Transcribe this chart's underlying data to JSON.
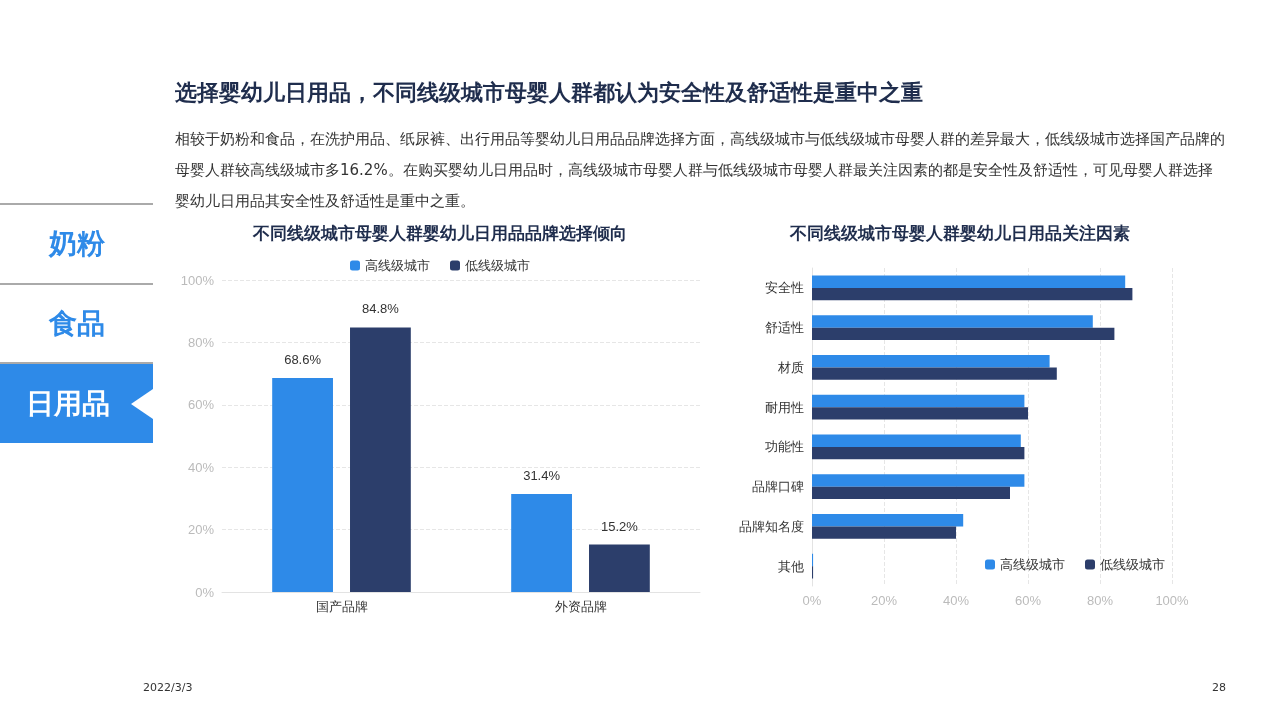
{
  "chart_data": [
    {
      "type": "other",
      "title": "选择婴幼儿日用品，不同线级城市母婴人群都认为安全性及舒适性是重中之重",
      "subtitle": "相较于奶粉和食品，在洗护用品、纸尿裤、出行用品等婴幼儿日用品品牌选择方面，高线级城市与低线级城市母婴人群的差异最大，低线级城市选择国产品牌的母婴人群较高线级城市多16.2%。在购买婴幼儿日用品时，高线级城市母婴人群与低线级城市母婴人群最关注因素的都是安全性及舒适性，可见母婴人群选择婴幼儿日用品其安全性及舒适性是重中之重。",
      "annotations": [
        "奶粉",
        "食品",
        "日用品",
        "2022/3/3",
        "28"
      ]
    },
    {
      "type": "bar",
      "title": "不同线级城市母婴人群婴幼儿日用品品牌选择倾向",
      "categories": [
        "国产品牌",
        "外资品牌"
      ],
      "series": [
        {
          "name": "高线级城市",
          "color": "#2e8ae8",
          "values": [
            68.6,
            31.4
          ],
          "value_labels": [
            "68.6%",
            "31.4%"
          ]
        },
        {
          "name": "低线级城市",
          "color": "#2c3e6b",
          "values": [
            84.8,
            15.2
          ],
          "value_labels": [
            "84.8%",
            "15.2%"
          ]
        }
      ],
      "ylim": [
        0,
        100
      ],
      "yticks": [
        {
          "value": 0,
          "label": "0%"
        },
        {
          "value": 20,
          "label": "20%"
        },
        {
          "value": 40,
          "label": "40%"
        },
        {
          "value": 60,
          "label": "60%"
        },
        {
          "value": 80,
          "label": "80%"
        },
        {
          "value": 100,
          "label": "100%"
        }
      ],
      "grid": "y",
      "legend": "top"
    },
    {
      "type": "bar",
      "orientation": "horizontal",
      "title": "不同线级城市母婴人群婴幼儿日用品关注因素",
      "categories": [
        "安全性",
        "舒适性",
        "材质",
        "耐用性",
        "功能性",
        "品牌口碑",
        "品牌知名度",
        "其他"
      ],
      "series": [
        {
          "name": "高线级城市",
          "color": "#2e8ae8",
          "values": [
            87,
            78,
            66,
            59,
            58,
            59,
            42,
            0.3
          ]
        },
        {
          "name": "低线级城市",
          "color": "#2c3e6b",
          "values": [
            89,
            84,
            68,
            60,
            59,
            55,
            40,
            0.3
          ]
        }
      ],
      "xlim": [
        0,
        100
      ],
      "xticks": [
        {
          "value": 0,
          "label": "0%"
        },
        {
          "value": 20,
          "label": "20%"
        },
        {
          "value": 40,
          "label": "40%"
        },
        {
          "value": 60,
          "label": "60%"
        },
        {
          "value": 80,
          "label": "80%"
        },
        {
          "value": 100,
          "label": "100%"
        }
      ],
      "grid": "x",
      "legend": "bottom right"
    }
  ]
}
